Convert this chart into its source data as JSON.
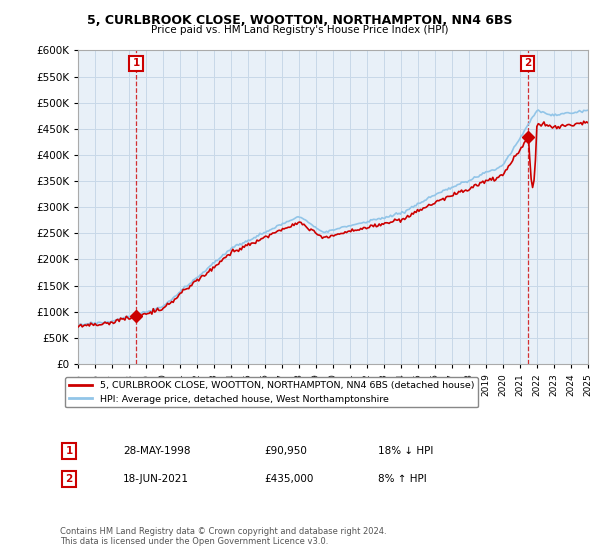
{
  "title": "5, CURLBROOK CLOSE, WOOTTON, NORTHAMPTON, NN4 6BS",
  "subtitle": "Price paid vs. HM Land Registry's House Price Index (HPI)",
  "ylabel_ticks": [
    "£0",
    "£50K",
    "£100K",
    "£150K",
    "£200K",
    "£250K",
    "£300K",
    "£350K",
    "£400K",
    "£450K",
    "£500K",
    "£550K",
    "£600K"
  ],
  "ytick_values": [
    0,
    50000,
    100000,
    150000,
    200000,
    250000,
    300000,
    350000,
    400000,
    450000,
    500000,
    550000,
    600000
  ],
  "xmin_year": 1995,
  "xmax_year": 2025,
  "xtick_years": [
    1995,
    1996,
    1997,
    1998,
    1999,
    2000,
    2001,
    2002,
    2003,
    2004,
    2005,
    2006,
    2007,
    2008,
    2009,
    2010,
    2011,
    2012,
    2013,
    2014,
    2015,
    2016,
    2017,
    2018,
    2019,
    2020,
    2021,
    2022,
    2023,
    2024,
    2025
  ],
  "sale1_year": 1998.41,
  "sale1_price": 90950,
  "sale1_label": "1",
  "sale2_year": 2021.46,
  "sale2_price": 435000,
  "sale2_label": "2",
  "hpi_color": "#92C5E8",
  "price_color": "#CC0000",
  "marker_box_color": "#CC0000",
  "grid_color": "#C8D8E8",
  "bg_color": "#FFFFFF",
  "plot_bg_color": "#E8F0F8",
  "legend_line1": "5, CURLBROOK CLOSE, WOOTTON, NORTHAMPTON, NN4 6BS (detached house)",
  "legend_line2": "HPI: Average price, detached house, West Northamptonshire",
  "table_row1": [
    "1",
    "28-MAY-1998",
    "£90,950",
    "18% ↓ HPI"
  ],
  "table_row2": [
    "2",
    "18-JUN-2021",
    "£435,000",
    "8% ↑ HPI"
  ],
  "footnote": "Contains HM Land Registry data © Crown copyright and database right 2024.\nThis data is licensed under the Open Government Licence v3.0."
}
